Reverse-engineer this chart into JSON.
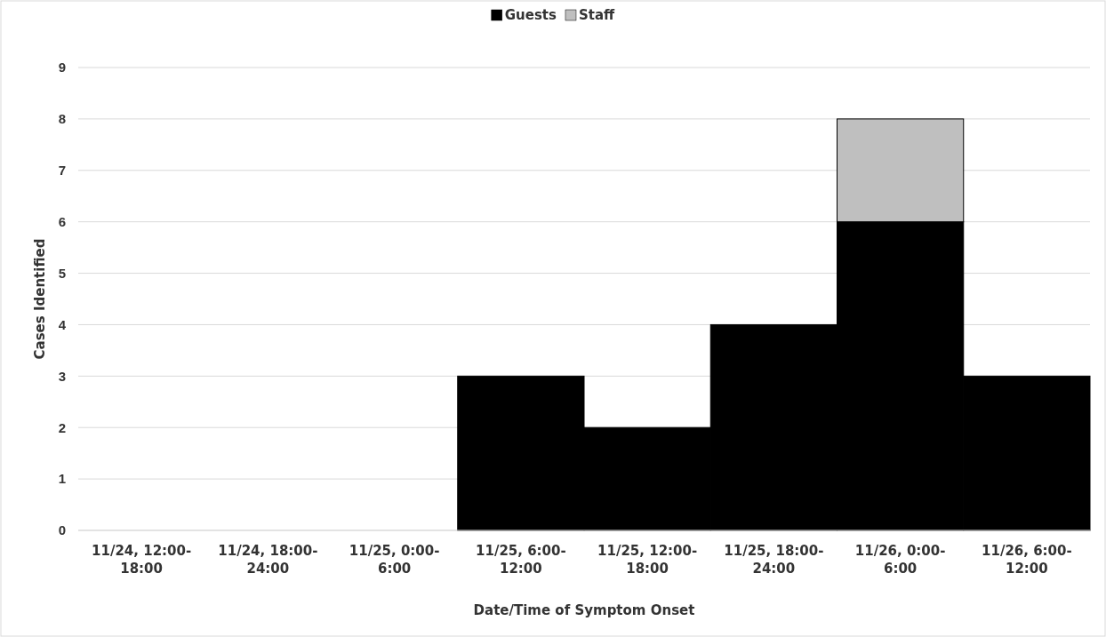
{
  "chart_data": {
    "type": "bar",
    "stacked": true,
    "xlabel": "Date/Time of Symptom Onset",
    "ylabel": "Cases Identified",
    "categories": [
      "11/24, 12:00-18:00",
      "11/24, 18:00-24:00",
      "11/25, 0:00-6:00",
      "11/25, 6:00-12:00",
      "11/25, 12:00-18:00",
      "11/25, 18:00-24:00",
      "11/26, 0:00-6:00",
      "11/26, 6:00-12:00"
    ],
    "series": [
      {
        "name": "Guests",
        "color": "#000000",
        "values": [
          0,
          0,
          0,
          3,
          2,
          4,
          6,
          3
        ]
      },
      {
        "name": "Staff",
        "color": "#bfbfbf",
        "values": [
          0,
          0,
          0,
          0,
          0,
          0,
          2,
          0
        ]
      }
    ],
    "ylim": [
      0,
      9
    ],
    "yticks": [
      0,
      1,
      2,
      3,
      4,
      5,
      6,
      7,
      8,
      9
    ],
    "grid": "y",
    "legend": "top"
  }
}
